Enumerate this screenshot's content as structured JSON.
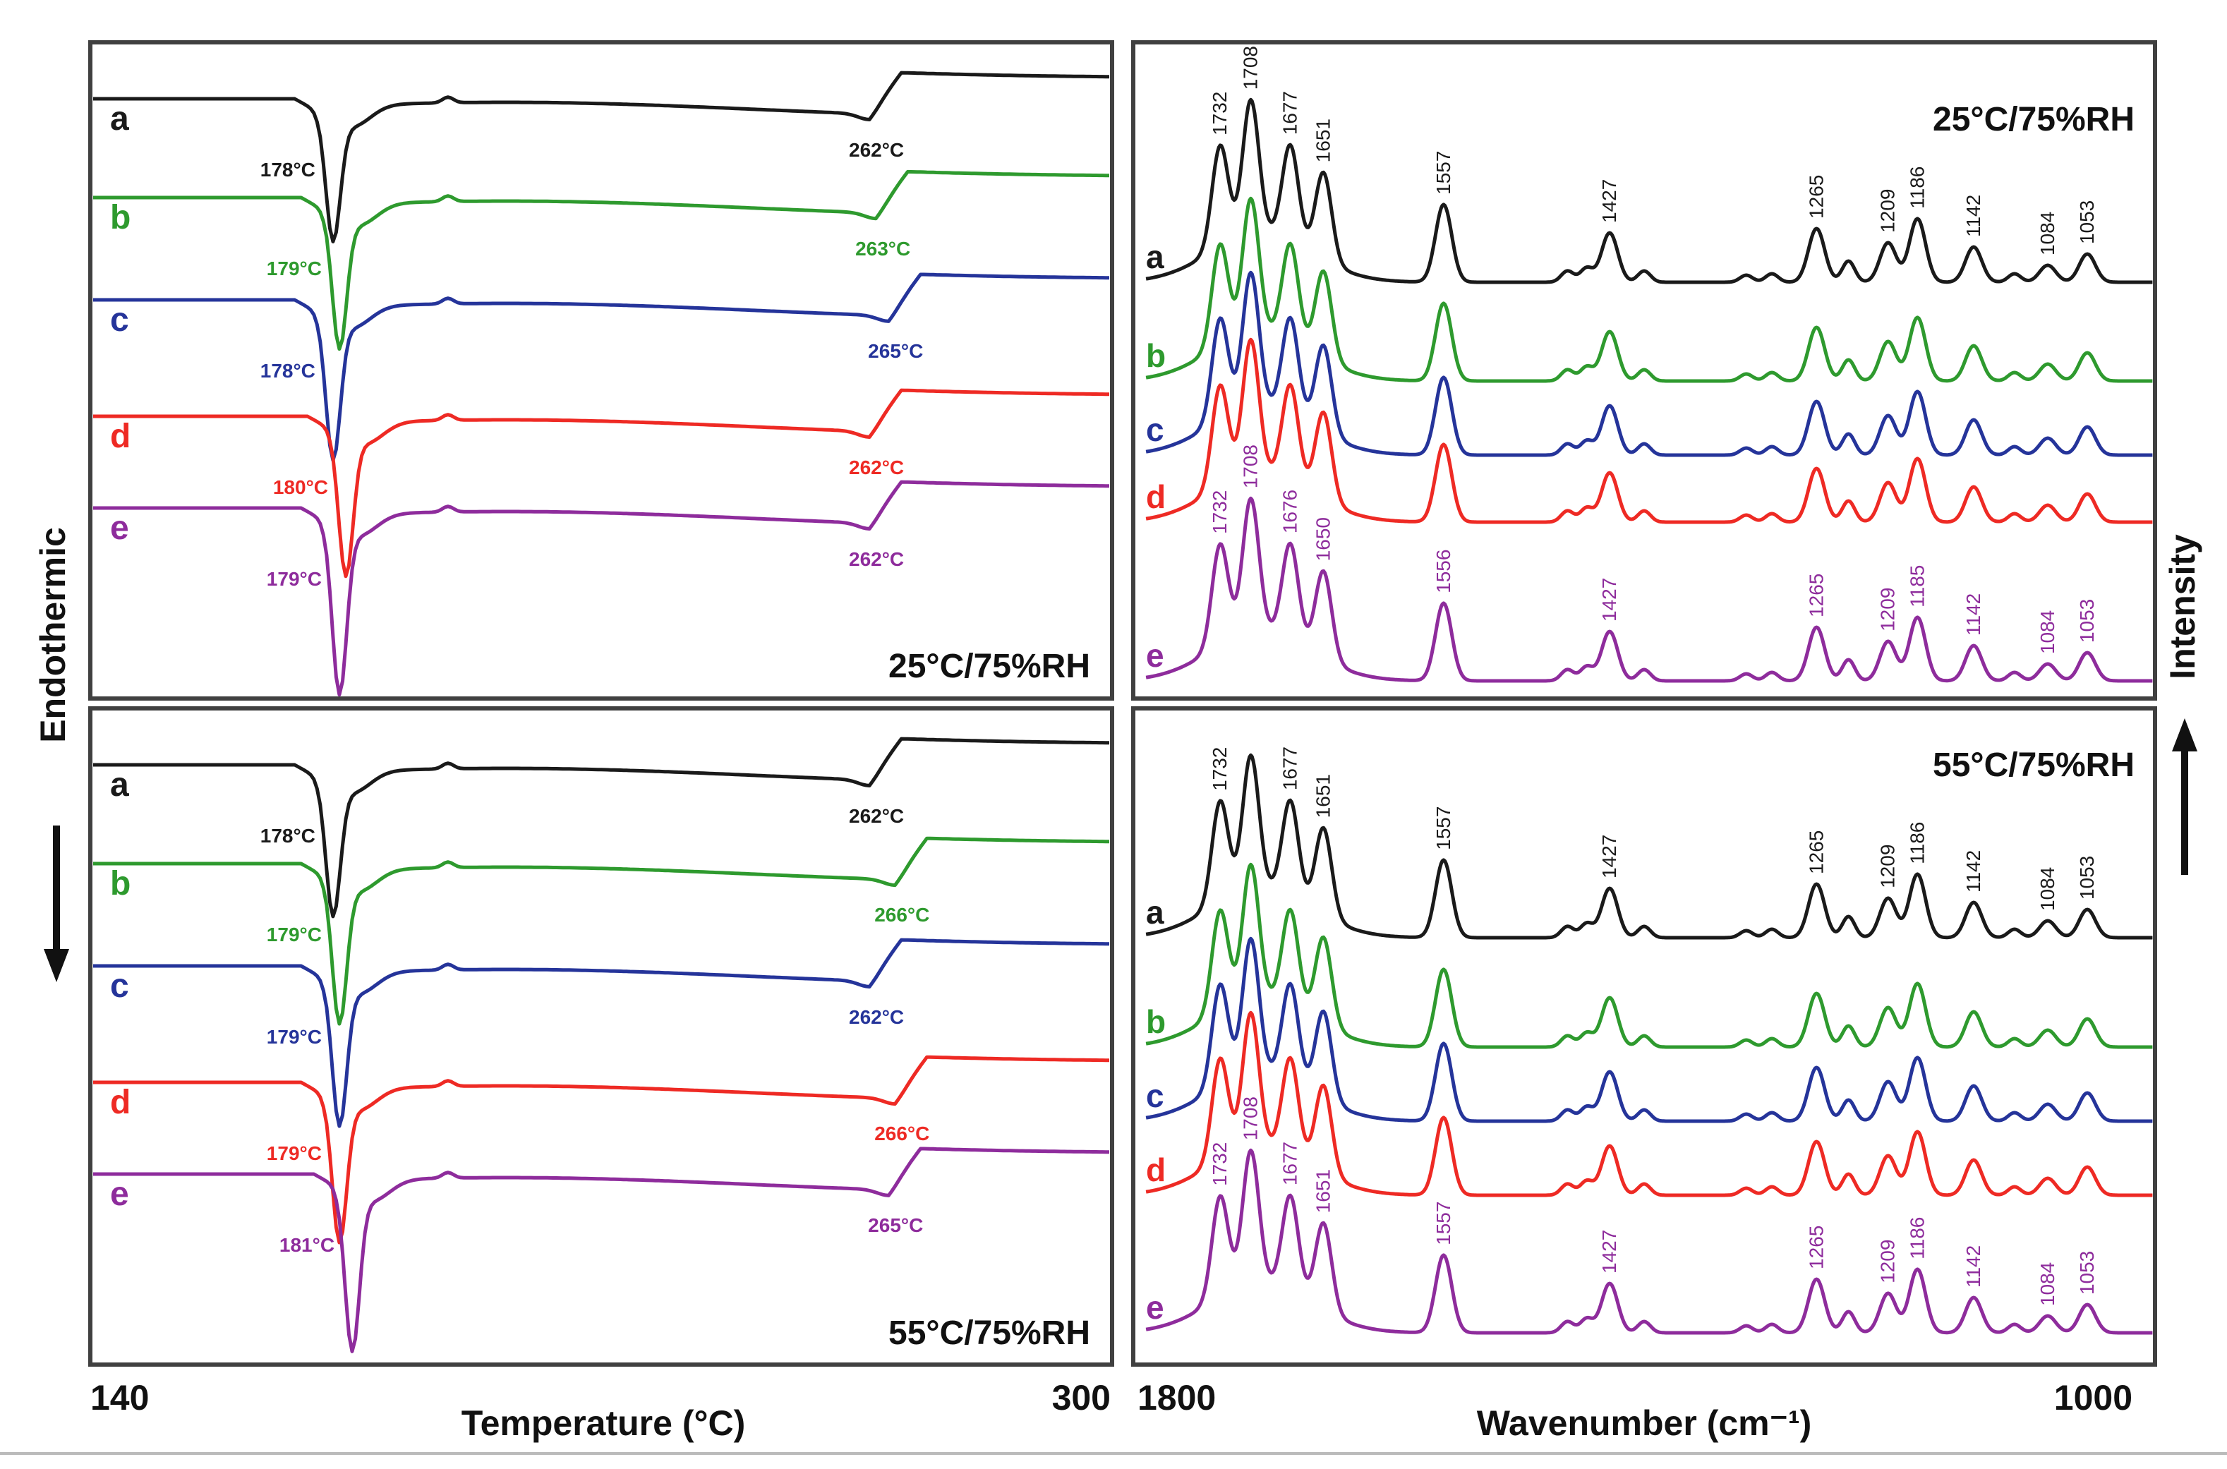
{
  "figure": {
    "dsc_x_axis": {
      "label": "Temperature (°C)",
      "min_label": "140",
      "max_label": "300",
      "range": [
        140,
        300
      ]
    },
    "ir_x_axis": {
      "label": "Wavenumber (cm⁻¹)",
      "min_label": "1800",
      "max_label": "1000",
      "range": [
        1800,
        1000
      ],
      "reversed": true
    },
    "dsc_y_axis": {
      "label": "Endothermic",
      "arrow": "down"
    },
    "ir_y_axis": {
      "label": "Intensity",
      "arrow": "up"
    },
    "trace_colors": {
      "a": "#1a1a1a",
      "b": "#2e9a2e",
      "c": "#25349a",
      "d": "#ee2a24",
      "e": "#8e2c9c"
    }
  },
  "chart_data": [
    {
      "type": "line",
      "panel": "DSC upper",
      "condition": "25°C/75%RH",
      "xlim": [
        140,
        300
      ],
      "series": [
        {
          "name": "a",
          "color": "#1a1a1a",
          "melt_peak_c": 178,
          "melt_label": "178°C",
          "decomp_c": 262,
          "decomp_label": "262°C",
          "depth": 0.7
        },
        {
          "name": "b",
          "color": "#2e9a2e",
          "melt_peak_c": 179,
          "melt_label": "179°C",
          "decomp_c": 263,
          "decomp_label": "263°C",
          "depth": 0.75
        },
        {
          "name": "c",
          "color": "#25349a",
          "melt_peak_c": 178,
          "melt_label": "178°C",
          "decomp_c": 265,
          "decomp_label": "265°C",
          "depth": 0.8
        },
        {
          "name": "d",
          "color": "#ee2a24",
          "melt_peak_c": 180,
          "melt_label": "180°C",
          "decomp_c": 262,
          "decomp_label": "262°C",
          "depth": 0.8
        },
        {
          "name": "e",
          "color": "#8e2c9c",
          "melt_peak_c": 179,
          "melt_label": "179°C",
          "decomp_c": 262,
          "decomp_label": "262°C",
          "depth": 0.95
        }
      ]
    },
    {
      "type": "line",
      "panel": "DSC lower",
      "condition": "55°C/75%RH",
      "xlim": [
        140,
        300
      ],
      "series": [
        {
          "name": "a",
          "color": "#1a1a1a",
          "melt_peak_c": 178,
          "melt_label": "178°C",
          "decomp_c": 262,
          "decomp_label": "262°C",
          "depth": 0.75
        },
        {
          "name": "b",
          "color": "#2e9a2e",
          "melt_peak_c": 179,
          "melt_label": "179°C",
          "decomp_c": 266,
          "decomp_label": "266°C",
          "depth": 0.8
        },
        {
          "name": "c",
          "color": "#25349a",
          "melt_peak_c": 179,
          "melt_label": "179°C",
          "decomp_c": 262,
          "decomp_label": "262°C",
          "depth": 0.8
        },
        {
          "name": "d",
          "color": "#ee2a24",
          "melt_peak_c": 179,
          "melt_label": "179°C",
          "decomp_c": 266,
          "decomp_label": "266°C",
          "depth": 0.8
        },
        {
          "name": "e",
          "color": "#8e2c9c",
          "melt_peak_c": 181,
          "melt_label": "181°C",
          "decomp_c": 265,
          "decomp_label": "265°C",
          "depth": 0.9
        }
      ]
    },
    {
      "type": "line",
      "panel": "FTIR upper",
      "condition": "25°C/75%RH",
      "xlim": [
        1800,
        1000
      ],
      "peaks": [
        {
          "wn": 1732,
          "h": 0.72
        },
        {
          "wn": 1708,
          "h": 0.95
        },
        {
          "wn": 1677,
          "h": 0.68
        },
        {
          "wn": 1651,
          "h": 0.62
        },
        {
          "wn": 1557,
          "h": 0.55
        },
        {
          "wn": 1427,
          "h": 0.35
        },
        {
          "wn": 1265,
          "h": 0.38
        },
        {
          "wn": 1209,
          "h": 0.28
        },
        {
          "wn": 1186,
          "h": 0.45
        },
        {
          "wn": 1142,
          "h": 0.25
        },
        {
          "wn": 1084,
          "h": 0.12
        },
        {
          "wn": 1053,
          "h": 0.2
        }
      ],
      "series": [
        {
          "name": "a",
          "color": "#1a1a1a",
          "peak_labels": [
            "1732",
            "1708",
            "1677",
            "1651",
            "1557",
            "1427",
            "1265",
            "1209",
            "1186",
            "1142",
            "1084",
            "1053"
          ]
        },
        {
          "name": "b",
          "color": "#2e9a2e"
        },
        {
          "name": "c",
          "color": "#25349a"
        },
        {
          "name": "d",
          "color": "#ee2a24"
        },
        {
          "name": "e",
          "color": "#8e2c9c",
          "peak_labels": [
            "1732",
            "1708",
            "1676",
            "1650",
            "1556",
            "1427",
            "1265",
            "1209",
            "1185",
            "1142",
            "1084",
            "1053"
          ]
        }
      ]
    },
    {
      "type": "line",
      "panel": "FTIR lower",
      "condition": "55°C/75%RH",
      "xlim": [
        1800,
        1000
      ],
      "peaks": [
        {
          "wn": 1732,
          "h": 0.72
        },
        {
          "wn": 1708,
          "h": 0.95
        },
        {
          "wn": 1677,
          "h": 0.68
        },
        {
          "wn": 1651,
          "h": 0.62
        },
        {
          "wn": 1557,
          "h": 0.55
        },
        {
          "wn": 1427,
          "h": 0.35
        },
        {
          "wn": 1265,
          "h": 0.38
        },
        {
          "wn": 1209,
          "h": 0.28
        },
        {
          "wn": 1186,
          "h": 0.45
        },
        {
          "wn": 1142,
          "h": 0.25
        },
        {
          "wn": 1084,
          "h": 0.12
        },
        {
          "wn": 1053,
          "h": 0.2
        }
      ],
      "series": [
        {
          "name": "a",
          "color": "#1a1a1a",
          "peak_labels": [
            "1732",
            "1677",
            "1651",
            "1557",
            "1427",
            "1265",
            "1209",
            "1186",
            "1142",
            "1084",
            "1053"
          ]
        },
        {
          "name": "b",
          "color": "#2e9a2e"
        },
        {
          "name": "c",
          "color": "#25349a"
        },
        {
          "name": "d",
          "color": "#ee2a24"
        },
        {
          "name": "e",
          "color": "#8e2c9c",
          "peak_labels": [
            "1732",
            "1708",
            "1677",
            "1651",
            "1557",
            "1427",
            "1265",
            "1209",
            "1186",
            "1142",
            "1084",
            "1053"
          ]
        }
      ]
    }
  ]
}
